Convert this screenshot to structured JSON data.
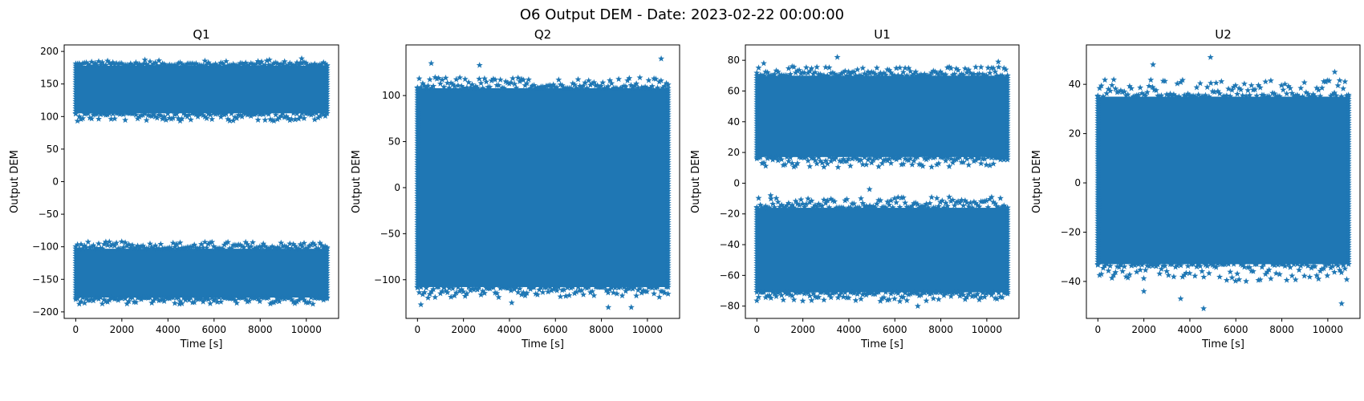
{
  "figure": {
    "suptitle": "O6 Output DEM - Date: 2023-02-22 00:00:00",
    "marker_color": "#1f77b4",
    "marker": "star"
  },
  "chart_data": [
    {
      "type": "scatter",
      "title": "Q1",
      "xlabel": "Time [s]",
      "ylabel": "Output DEM",
      "xlim": [
        -500,
        11400
      ],
      "ylim": [
        -210,
        210
      ],
      "xticks": [
        0,
        2000,
        4000,
        6000,
        8000,
        10000
      ],
      "yticks": [
        -200,
        -150,
        -100,
        -50,
        0,
        50,
        100,
        150,
        200
      ],
      "x_range": [
        0,
        10900
      ],
      "bands": [
        {
          "core": [
            105,
            178
          ],
          "spread": [
            93,
            186
          ]
        },
        {
          "core": [
            -178,
            -103
          ],
          "spread": [
            -188,
            -92
          ]
        }
      ],
      "outliers": [
        [
          3000,
          187
        ],
        [
          8400,
          187
        ],
        [
          9800,
          189
        ],
        [
          4500,
          -188
        ],
        [
          9500,
          -187
        ]
      ]
    },
    {
      "type": "scatter",
      "title": "Q2",
      "xlabel": "Time [s]",
      "ylabel": "Output DEM",
      "xlim": [
        -500,
        11400
      ],
      "ylim": [
        -142,
        155
      ],
      "xticks": [
        0,
        2000,
        4000,
        6000,
        8000,
        10000
      ],
      "yticks": [
        -100,
        -50,
        0,
        50,
        100
      ],
      "x_range": [
        0,
        10900
      ],
      "bands": [
        {
          "core": [
            -108,
            108
          ],
          "spread": [
            -120,
            120
          ]
        }
      ],
      "outliers": [
        [
          600,
          135
        ],
        [
          2700,
          133
        ],
        [
          10600,
          140
        ],
        [
          150,
          -127
        ],
        [
          8300,
          -130
        ],
        [
          9300,
          -130
        ],
        [
          4100,
          -125
        ]
      ]
    },
    {
      "type": "scatter",
      "title": "U1",
      "xlabel": "Time [s]",
      "ylabel": "Output DEM",
      "xlim": [
        -500,
        11400
      ],
      "ylim": [
        -88,
        90
      ],
      "xticks": [
        0,
        2000,
        4000,
        6000,
        8000,
        10000
      ],
      "yticks": [
        -80,
        -60,
        -40,
        -20,
        0,
        20,
        40,
        60,
        80
      ],
      "x_range": [
        0,
        10900
      ],
      "bands": [
        {
          "core": [
            17,
            70
          ],
          "spread": [
            10,
            76
          ]
        },
        {
          "core": [
            -71,
            -16
          ],
          "spread": [
            -77,
            -9
          ]
        }
      ],
      "outliers": [
        [
          3500,
          82
        ],
        [
          10500,
          79
        ],
        [
          300,
          78
        ],
        [
          4900,
          -4
        ],
        [
          7000,
          -80
        ],
        [
          600,
          -8
        ]
      ]
    },
    {
      "type": "scatter",
      "title": "U2",
      "xlabel": "Time [s]",
      "ylabel": "Output DEM",
      "xlim": [
        -500,
        11400
      ],
      "ylim": [
        -55,
        56
      ],
      "xticks": [
        0,
        2000,
        4000,
        6000,
        8000,
        10000
      ],
      "yticks": [
        -40,
        -20,
        0,
        20,
        40
      ],
      "x_range": [
        0,
        10900
      ],
      "bands": [
        {
          "core": [
            -33,
            35
          ],
          "spread": [
            -40,
            42
          ]
        }
      ],
      "outliers": [
        [
          4900,
          51
        ],
        [
          2400,
          48
        ],
        [
          10300,
          45
        ],
        [
          4600,
          -51
        ],
        [
          10600,
          -49
        ],
        [
          3600,
          -47
        ],
        [
          2000,
          -44
        ]
      ]
    }
  ]
}
